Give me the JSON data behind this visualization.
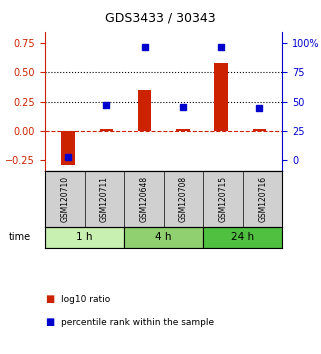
{
  "title": "GDS3433 / 30343",
  "categories": [
    "GSM120710",
    "GSM120711",
    "GSM120648",
    "GSM120708",
    "GSM120715",
    "GSM120716"
  ],
  "log10_ratio": [
    -0.3,
    0.01,
    0.35,
    0.01,
    0.58,
    0.01
  ],
  "percentile_rank": [
    2,
    47,
    97,
    45,
    97,
    44
  ],
  "time_groups": [
    {
      "label": "1 h",
      "indices": [
        0,
        1
      ],
      "color": "#c8f0b0"
    },
    {
      "label": "4 h",
      "indices": [
        2,
        3
      ],
      "color": "#90d070"
    },
    {
      "label": "24 h",
      "indices": [
        4,
        5
      ],
      "color": "#50c040"
    }
  ],
  "bar_color": "#cc2200",
  "dot_color": "#0000cc",
  "left_yticks": [
    -0.25,
    0.0,
    0.25,
    0.5,
    0.75
  ],
  "right_yticks": [
    0,
    25,
    50,
    75,
    100
  ],
  "right_yticklabels": [
    "0",
    "25",
    "50",
    "75",
    "100%"
  ],
  "ylim_left": [
    -0.35,
    0.85
  ],
  "ylim_right": [
    -10,
    110
  ],
  "hline_y": [
    0.25,
    0.5
  ],
  "zero_line_y": 0.0,
  "background_plot": "#ffffff",
  "background_labels": "#d0d0d0",
  "time_label": "time"
}
